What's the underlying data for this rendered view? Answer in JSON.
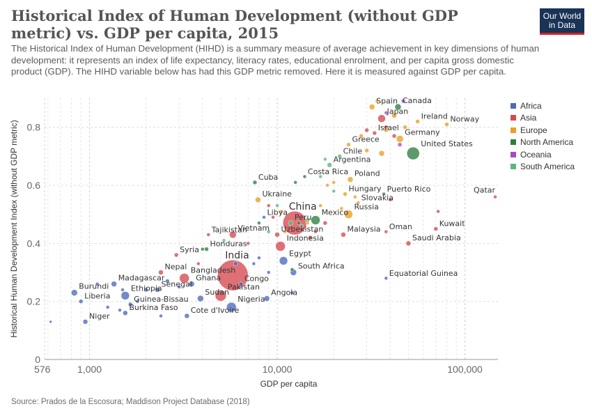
{
  "header": {
    "title": "Historical Index of Human Development (without GDP metric) vs. GDP per capita, 2015",
    "subtitle": "The Historical Index of Human Development (HIHD) is a summary measure of average achievement in key dimensions of human development: it represents an index of life expectancy, literacy rates, educational enrolment, and per capita gross domestic product (GDP). The HIHD variable below has had this GDP metric removed. Here it is measured against GDP per capita.",
    "logo_line1": "Our World",
    "logo_line2": "in Data"
  },
  "source": "Source: Prados de la Escosura; Maddison Project Database (2018)",
  "colors": {
    "Africa": "#4c6aba",
    "Asia": "#d6494f",
    "Europe": "#e9a023",
    "North America": "#2f7d3f",
    "Oceania": "#a54cc0",
    "South America": "#5cb87a"
  },
  "chart_data": {
    "type": "scatter",
    "xlabel": "GDP per capita",
    "ylabel": "Historical Human Development Index (without GDP metric)",
    "x_scale": "log",
    "xlim": [
      576,
      150000
    ],
    "ylim": [
      0,
      0.9
    ],
    "x_ticks": [
      {
        "value": 576,
        "label": "576"
      },
      {
        "value": 1000,
        "label": "1,000"
      },
      {
        "value": 10000,
        "label": "10,000"
      },
      {
        "value": 100000,
        "label": "100,000"
      }
    ],
    "y_ticks": [
      {
        "value": 0,
        "label": "0"
      },
      {
        "value": 0.2,
        "label": "0.2"
      },
      {
        "value": 0.4,
        "label": "0.4"
      },
      {
        "value": 0.6,
        "label": "0.6"
      },
      {
        "value": 0.8,
        "label": "0.8"
      }
    ],
    "grid": true,
    "legend_position": "right",
    "legend": [
      "Africa",
      "Asia",
      "Europe",
      "North America",
      "Oceania",
      "South America"
    ],
    "points": [
      {
        "label": "Spain",
        "x": 32000,
        "y": 0.87,
        "r": 4,
        "continent": "Europe"
      },
      {
        "label": "Canada",
        "x": 44000,
        "y": 0.87,
        "r": 4.5,
        "continent": "North America"
      },
      {
        "label": "Japan",
        "x": 36000,
        "y": 0.83,
        "r": 5.5,
        "continent": "Asia"
      },
      {
        "label": "Ireland",
        "x": 56000,
        "y": 0.82,
        "r": 3,
        "continent": "Europe"
      },
      {
        "label": "Norway",
        "x": 80000,
        "y": 0.81,
        "r": 3,
        "continent": "Europe"
      },
      {
        "label": "Israel",
        "x": 33000,
        "y": 0.78,
        "r": 3,
        "continent": "Asia"
      },
      {
        "label": "Germany",
        "x": 45000,
        "y": 0.76,
        "r": 5,
        "continent": "Europe"
      },
      {
        "label": "United States",
        "x": 53000,
        "y": 0.71,
        "r": 9,
        "continent": "North America"
      },
      {
        "label": "Greece",
        "x": 24000,
        "y": 0.74,
        "r": 3,
        "continent": "Europe"
      },
      {
        "label": "Chile",
        "x": 21500,
        "y": 0.7,
        "r": 3,
        "continent": "South America"
      },
      {
        "label": "Argentina",
        "x": 19000,
        "y": 0.67,
        "r": 3.5,
        "continent": "South America"
      },
      {
        "label": "Costa Rica",
        "x": 14000,
        "y": 0.63,
        "r": 2.5,
        "continent": "North America"
      },
      {
        "label": "Poland",
        "x": 24500,
        "y": 0.62,
        "r": 4,
        "continent": "Europe"
      },
      {
        "label": "Cuba",
        "x": 7600,
        "y": 0.61,
        "r": 3,
        "continent": "North America"
      },
      {
        "label": "Hungary",
        "x": 23000,
        "y": 0.57,
        "r": 3,
        "continent": "Europe"
      },
      {
        "label": "Puerto Rico",
        "x": 37000,
        "y": 0.57,
        "r": 2.5,
        "continent": "North America"
      },
      {
        "label": "Slovakia",
        "x": 27000,
        "y": 0.54,
        "r": 2.5,
        "continent": "Europe"
      },
      {
        "label": "Ukraine",
        "x": 7900,
        "y": 0.55,
        "r": 4,
        "continent": "Europe"
      },
      {
        "label": "Qatar",
        "x": 145000,
        "y": 0.56,
        "r": 2.5,
        "continent": "Asia"
      },
      {
        "label": "China",
        "x": 12400,
        "y": 0.47,
        "r": 17,
        "continent": "Asia"
      },
      {
        "label": "Russia",
        "x": 24000,
        "y": 0.5,
        "r": 6,
        "continent": "Europe"
      },
      {
        "label": "Peru",
        "x": 11800,
        "y": 0.47,
        "r": 3.5,
        "continent": "South America"
      },
      {
        "label": "Mexico",
        "x": 16000,
        "y": 0.48,
        "r": 6.5,
        "continent": "North America"
      },
      {
        "label": "Libya",
        "x": 8500,
        "y": 0.49,
        "r": 2.5,
        "continent": "Africa"
      },
      {
        "label": "Tajikistan",
        "x": 4300,
        "y": 0.43,
        "r": 2.5,
        "continent": "Asia"
      },
      {
        "label": "Vietnam",
        "x": 5800,
        "y": 0.43,
        "r": 5,
        "continent": "Asia"
      },
      {
        "label": "Uzbekistan",
        "x": 10000,
        "y": 0.43,
        "r": 3.5,
        "continent": "Asia"
      },
      {
        "label": "Indonesia",
        "x": 10400,
        "y": 0.39,
        "r": 7,
        "continent": "Asia"
      },
      {
        "label": "Malaysia",
        "x": 22500,
        "y": 0.43,
        "r": 3.5,
        "continent": "Asia"
      },
      {
        "label": "Oman",
        "x": 38000,
        "y": 0.44,
        "r": 2.5,
        "continent": "Asia"
      },
      {
        "label": "Kuwait",
        "x": 70000,
        "y": 0.45,
        "r": 3,
        "continent": "Asia"
      },
      {
        "label": "Saudi Arabia",
        "x": 50000,
        "y": 0.4,
        "r": 3.5,
        "continent": "Asia"
      },
      {
        "label": "Honduras",
        "x": 4200,
        "y": 0.38,
        "r": 3,
        "continent": "North America"
      },
      {
        "label": "Syria",
        "x": 2900,
        "y": 0.36,
        "r": 3,
        "continent": "Asia"
      },
      {
        "label": "Egypt",
        "x": 10800,
        "y": 0.34,
        "r": 6,
        "continent": "Africa"
      },
      {
        "label": "India",
        "x": 5800,
        "y": 0.29,
        "r": 22,
        "continent": "Asia"
      },
      {
        "label": "South Africa",
        "x": 12200,
        "y": 0.3,
        "r": 4.5,
        "continent": "Africa"
      },
      {
        "label": "Equatorial Guinea",
        "x": 38000,
        "y": 0.28,
        "r": 2.5,
        "continent": "Africa"
      },
      {
        "label": "Nepal",
        "x": 2400,
        "y": 0.3,
        "r": 3.5,
        "continent": "Asia"
      },
      {
        "label": "Bangladesh",
        "x": 3200,
        "y": 0.28,
        "r": 7,
        "continent": "Asia"
      },
      {
        "label": "Ghana",
        "x": 3500,
        "y": 0.26,
        "r": 4,
        "continent": "Africa"
      },
      {
        "label": "Congo",
        "x": 6400,
        "y": 0.26,
        "r": 3,
        "continent": "Africa"
      },
      {
        "label": "Madagascar",
        "x": 1350,
        "y": 0.26,
        "r": 4,
        "continent": "Africa"
      },
      {
        "label": "Senegal",
        "x": 2300,
        "y": 0.24,
        "r": 3.5,
        "continent": "Africa"
      },
      {
        "label": "Pakistan",
        "x": 5000,
        "y": 0.22,
        "r": 8,
        "continent": "Asia"
      },
      {
        "label": "Ethiopia",
        "x": 1550,
        "y": 0.22,
        "r": 6,
        "continent": "Africa"
      },
      {
        "label": "Sudan",
        "x": 3900,
        "y": 0.21,
        "r": 4.5,
        "continent": "Africa"
      },
      {
        "label": "Burundi",
        "x": 830,
        "y": 0.23,
        "r": 4.5,
        "continent": "Africa"
      },
      {
        "label": "Liberia",
        "x": 900,
        "y": 0.2,
        "r": 3,
        "continent": "Africa"
      },
      {
        "label": "Guinea-Bissau",
        "x": 1650,
        "y": 0.19,
        "r": 3,
        "continent": "Africa"
      },
      {
        "label": "Angola",
        "x": 8800,
        "y": 0.21,
        "r": 4,
        "continent": "Africa"
      },
      {
        "label": "Nigeria",
        "x": 5700,
        "y": 0.18,
        "r": 7,
        "continent": "Africa"
      },
      {
        "label": "Burkina Faso",
        "x": 1550,
        "y": 0.16,
        "r": 3.5,
        "continent": "Africa"
      },
      {
        "label": "Cote d'Ivoire",
        "x": 3300,
        "y": 0.15,
        "r": 3.5,
        "continent": "Africa"
      },
      {
        "label": "Niger",
        "x": 950,
        "y": 0.13,
        "r": 3.5,
        "continent": "Africa"
      },
      {
        "label": "",
        "x": 620,
        "y": 0.13,
        "r": 2,
        "continent": "Africa"
      },
      {
        "label": "",
        "x": 1100,
        "y": 0.26,
        "r": 2.5,
        "continent": "Africa"
      },
      {
        "label": "",
        "x": 1250,
        "y": 0.18,
        "r": 2.5,
        "continent": "Africa"
      },
      {
        "label": "",
        "x": 1450,
        "y": 0.17,
        "r": 2.5,
        "continent": "Africa"
      },
      {
        "label": "",
        "x": 1800,
        "y": 0.2,
        "r": 2.5,
        "continent": "Africa"
      },
      {
        "label": "",
        "x": 2000,
        "y": 0.24,
        "r": 3,
        "continent": "Africa"
      },
      {
        "label": "",
        "x": 2400,
        "y": 0.15,
        "r": 2.5,
        "continent": "Africa"
      },
      {
        "label": "",
        "x": 2600,
        "y": 0.27,
        "r": 3,
        "continent": "Africa"
      },
      {
        "label": "",
        "x": 3000,
        "y": 0.25,
        "r": 2.5,
        "continent": "Africa"
      },
      {
        "label": "",
        "x": 1500,
        "y": 0.24,
        "r": 2.5,
        "continent": "Africa"
      },
      {
        "label": "",
        "x": 7500,
        "y": 0.33,
        "r": 2.5,
        "continent": "Africa"
      },
      {
        "label": "",
        "x": 8000,
        "y": 0.35,
        "r": 2.5,
        "continent": "Africa"
      },
      {
        "label": "",
        "x": 9000,
        "y": 0.3,
        "r": 2.5,
        "continent": "Africa"
      },
      {
        "label": "",
        "x": 6000,
        "y": 0.33,
        "r": 3,
        "continent": "Africa"
      },
      {
        "label": "",
        "x": 12000,
        "y": 0.23,
        "r": 2.5,
        "continent": "Africa"
      },
      {
        "label": "",
        "x": 7000,
        "y": 0.4,
        "r": 2.5,
        "continent": "Asia"
      },
      {
        "label": "",
        "x": 9500,
        "y": 0.49,
        "r": 2.5,
        "continent": "Asia"
      },
      {
        "label": "",
        "x": 15000,
        "y": 0.42,
        "r": 3,
        "continent": "Asia"
      },
      {
        "label": "",
        "x": 18000,
        "y": 0.47,
        "r": 3,
        "continent": "Asia"
      },
      {
        "label": "",
        "x": 16000,
        "y": 0.44,
        "r": 2.5,
        "continent": "Asia"
      },
      {
        "label": "",
        "x": 30000,
        "y": 0.79,
        "r": 3,
        "continent": "Asia"
      },
      {
        "label": "",
        "x": 38000,
        "y": 0.8,
        "r": 3,
        "continent": "Asia"
      },
      {
        "label": "",
        "x": 42000,
        "y": 0.77,
        "r": 3,
        "continent": "Asia"
      },
      {
        "label": "",
        "x": 40000,
        "y": 0.55,
        "r": 2.5,
        "continent": "Asia"
      },
      {
        "label": "",
        "x": 72000,
        "y": 0.51,
        "r": 2.5,
        "continent": "Asia"
      },
      {
        "label": "",
        "x": 9000,
        "y": 0.53,
        "r": 2.5,
        "continent": "Asia"
      },
      {
        "label": "",
        "x": 3800,
        "y": 0.33,
        "r": 2.5,
        "continent": "Asia"
      },
      {
        "label": "",
        "x": 28000,
        "y": 0.77,
        "r": 3,
        "continent": "Europe"
      },
      {
        "label": "",
        "x": 38000,
        "y": 0.79,
        "r": 3,
        "continent": "Europe"
      },
      {
        "label": "",
        "x": 42000,
        "y": 0.84,
        "r": 3.5,
        "continent": "Europe"
      },
      {
        "label": "",
        "x": 48000,
        "y": 0.8,
        "r": 3,
        "continent": "Europe"
      },
      {
        "label": "",
        "x": 36000,
        "y": 0.71,
        "r": 4,
        "continent": "Europe"
      },
      {
        "label": "",
        "x": 30000,
        "y": 0.72,
        "r": 3,
        "continent": "Europe"
      },
      {
        "label": "",
        "x": 20000,
        "y": 0.61,
        "r": 2.5,
        "continent": "Europe"
      },
      {
        "label": "",
        "x": 18500,
        "y": 0.6,
        "r": 2.5,
        "continent": "Europe"
      },
      {
        "label": "",
        "x": 22000,
        "y": 0.52,
        "r": 2.5,
        "continent": "Europe"
      },
      {
        "label": "",
        "x": 17000,
        "y": 0.53,
        "r": 2.5,
        "continent": "Europe"
      },
      {
        "label": "",
        "x": 26000,
        "y": 0.56,
        "r": 2.5,
        "continent": "Europe"
      },
      {
        "label": "",
        "x": 34000,
        "y": 0.89,
        "r": 2.5,
        "continent": "Europe"
      },
      {
        "label": "",
        "x": 14500,
        "y": 0.47,
        "r": 2.5,
        "continent": "Europe"
      },
      {
        "label": "",
        "x": 11000,
        "y": 0.44,
        "r": 2.5,
        "continent": "Europe"
      },
      {
        "label": "",
        "x": 10500,
        "y": 0.51,
        "r": 2.5,
        "continent": "Europe"
      },
      {
        "label": "",
        "x": 12000,
        "y": 0.31,
        "r": 2.5,
        "continent": "North America"
      },
      {
        "label": "",
        "x": 8000,
        "y": 0.47,
        "r": 2.5,
        "continent": "North America"
      },
      {
        "label": "",
        "x": 13000,
        "y": 0.47,
        "r": 2.5,
        "continent": "North America"
      },
      {
        "label": "",
        "x": 4000,
        "y": 0.38,
        "r": 2.5,
        "continent": "North America"
      },
      {
        "label": "",
        "x": 12500,
        "y": 0.61,
        "r": 2.5,
        "continent": "North America"
      },
      {
        "label": "",
        "x": 47000,
        "y": 0.89,
        "r": 3,
        "continent": "Oceania"
      },
      {
        "label": "",
        "x": 45000,
        "y": 0.74,
        "r": 3,
        "continent": "Oceania"
      },
      {
        "label": "",
        "x": 38000,
        "y": 0.85,
        "r": 2.5,
        "continent": "Oceania"
      },
      {
        "label": "",
        "x": 13500,
        "y": 0.46,
        "r": 2.5,
        "continent": "South America"
      },
      {
        "label": "",
        "x": 17000,
        "y": 0.63,
        "r": 2.5,
        "continent": "South America"
      },
      {
        "label": "",
        "x": 14500,
        "y": 0.48,
        "r": 3,
        "continent": "South America"
      },
      {
        "label": "",
        "x": 10000,
        "y": 0.53,
        "r": 2.5,
        "continent": "South America"
      },
      {
        "label": "",
        "x": 5200,
        "y": 0.41,
        "r": 2.5,
        "continent": "South America"
      },
      {
        "label": "",
        "x": 9000,
        "y": 0.44,
        "r": 2.5,
        "continent": "South America"
      },
      {
        "label": "",
        "x": 20000,
        "y": 0.58,
        "r": 2.5,
        "continent": "South America"
      },
      {
        "label": "",
        "x": 18000,
        "y": 0.69,
        "r": 2.5,
        "continent": "South America"
      }
    ]
  }
}
